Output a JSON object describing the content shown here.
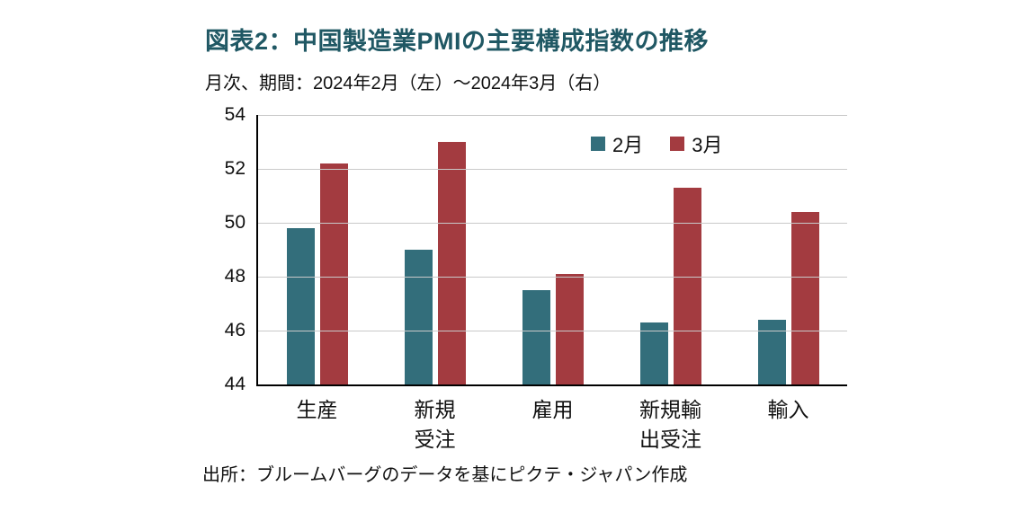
{
  "chart": {
    "title": "図表2：中国製造業PMIの主要構成指数の推移",
    "subtitle": "月次、期間：2024年2月（左）～2024年3月（右）",
    "source": "出所：ブルームバーグのデータを基にピクテ・ジャパン作成"
  },
  "chart_data": {
    "type": "bar",
    "title": "図表2：中国製造業PMIの主要構成指数の推移",
    "subtitle": "月次、期間：2024年2月（左）～2024年3月（右）",
    "categories": [
      "生産",
      "新規\n受注",
      "雇用",
      "新規輸\n出受注",
      "輸入"
    ],
    "series": [
      {
        "name": "2月",
        "color": "#336e7b",
        "values": [
          49.8,
          49.0,
          47.5,
          46.3,
          46.4
        ]
      },
      {
        "name": "3月",
        "color": "#a33b40",
        "values": [
          52.2,
          53.0,
          48.1,
          51.3,
          50.4
        ]
      }
    ],
    "ylim": [
      44,
      54
    ],
    "ytick_step": 2,
    "grid": true,
    "gridline_color": "#c9c9c9",
    "legend_position": "top-center-inside",
    "source": "出所：ブルームバーグのデータを基にピクテ・ジャパン作成"
  }
}
